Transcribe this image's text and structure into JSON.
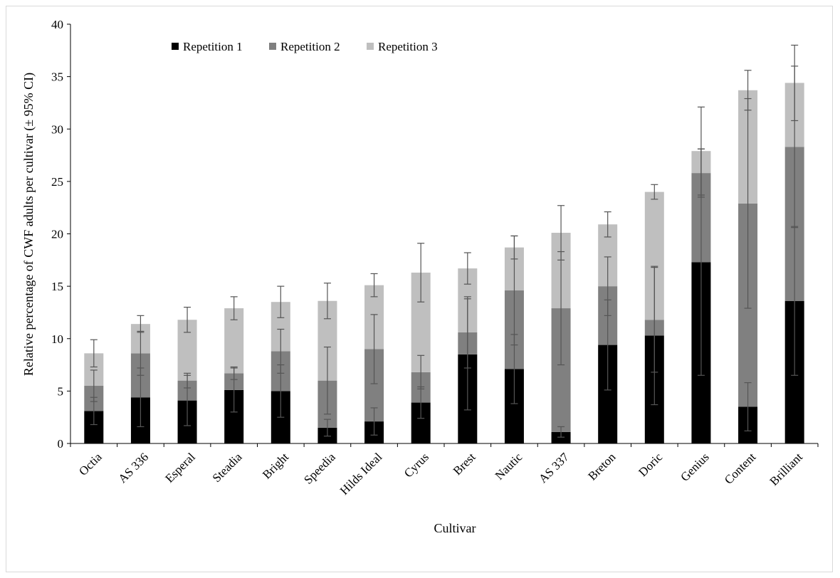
{
  "chart_data": {
    "type": "bar",
    "stacked": true,
    "title": "",
    "xlabel": "Cultivar",
    "ylabel": "Relative percentage of CWF adults per cultivar (± 95% CI)",
    "ylim": [
      0,
      40
    ],
    "yticks": [
      0,
      5,
      10,
      15,
      20,
      25,
      30,
      35,
      40
    ],
    "grid": false,
    "legend": {
      "placement": "top-left",
      "orientation": "horizontal"
    },
    "categories": [
      "Octia",
      "AS 336",
      "Esperal",
      "Steadia",
      "Bright",
      "Speedia",
      "Hilds Ideal",
      "Cyrus",
      "Brest",
      "Nautic",
      "AS 337",
      "Breton",
      "Doric",
      "Genius",
      "Content",
      "Brilliant"
    ],
    "series": [
      {
        "name": "Repetition 1",
        "color": "#000000",
        "values": [
          3.1,
          4.4,
          4.1,
          5.1,
          5.0,
          1.5,
          2.1,
          3.9,
          8.5,
          7.1,
          1.1,
          9.4,
          10.3,
          17.3,
          3.5,
          13.6
        ],
        "ci": [
          1.3,
          2.8,
          2.4,
          2.1,
          2.5,
          0.8,
          1.3,
          1.5,
          5.3,
          3.3,
          0.5,
          4.3,
          6.6,
          10.8,
          2.3,
          7.1
        ]
      },
      {
        "name": "Repetition 2",
        "color": "#808080",
        "values": [
          2.4,
          4.2,
          1.9,
          1.6,
          3.8,
          4.5,
          6.9,
          2.9,
          2.1,
          7.5,
          11.8,
          5.6,
          1.5,
          8.5,
          19.4,
          14.7
        ],
        "ci": [
          1.5,
          2.1,
          0.7,
          0.6,
          2.1,
          3.2,
          3.3,
          1.6,
          3.4,
          5.2,
          5.4,
          2.8,
          5.0,
          2.3,
          10.0,
          7.7
        ]
      },
      {
        "name": "Repetition 3",
        "color": "#bfbfbf",
        "values": [
          3.1,
          2.8,
          5.8,
          6.2,
          4.7,
          7.6,
          6.1,
          9.5,
          6.1,
          4.1,
          7.2,
          5.9,
          12.2,
          2.1,
          10.8,
          6.1
        ],
        "ci": [
          1.3,
          0.8,
          1.2,
          1.1,
          1.5,
          1.7,
          1.1,
          2.8,
          1.5,
          1.1,
          2.6,
          1.2,
          0.7,
          4.2,
          1.9,
          3.6
        ]
      }
    ]
  }
}
